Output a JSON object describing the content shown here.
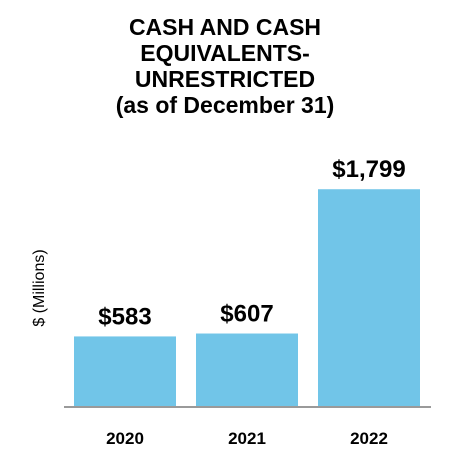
{
  "chart_data": {
    "type": "bar",
    "title_lines": [
      "CASH AND CASH",
      "EQUIVALENTS-",
      "UNRESTRICTED",
      "(as of December 31)"
    ],
    "ylabel": "$ (Millions)",
    "categories": [
      "2020",
      "2021",
      "2022"
    ],
    "values": [
      583,
      607,
      1799
    ],
    "data_labels": [
      "$583",
      "$607",
      "$1,799"
    ],
    "ylim": [
      0,
      1900
    ],
    "grid": false,
    "bar_color": "#71C5E8"
  }
}
